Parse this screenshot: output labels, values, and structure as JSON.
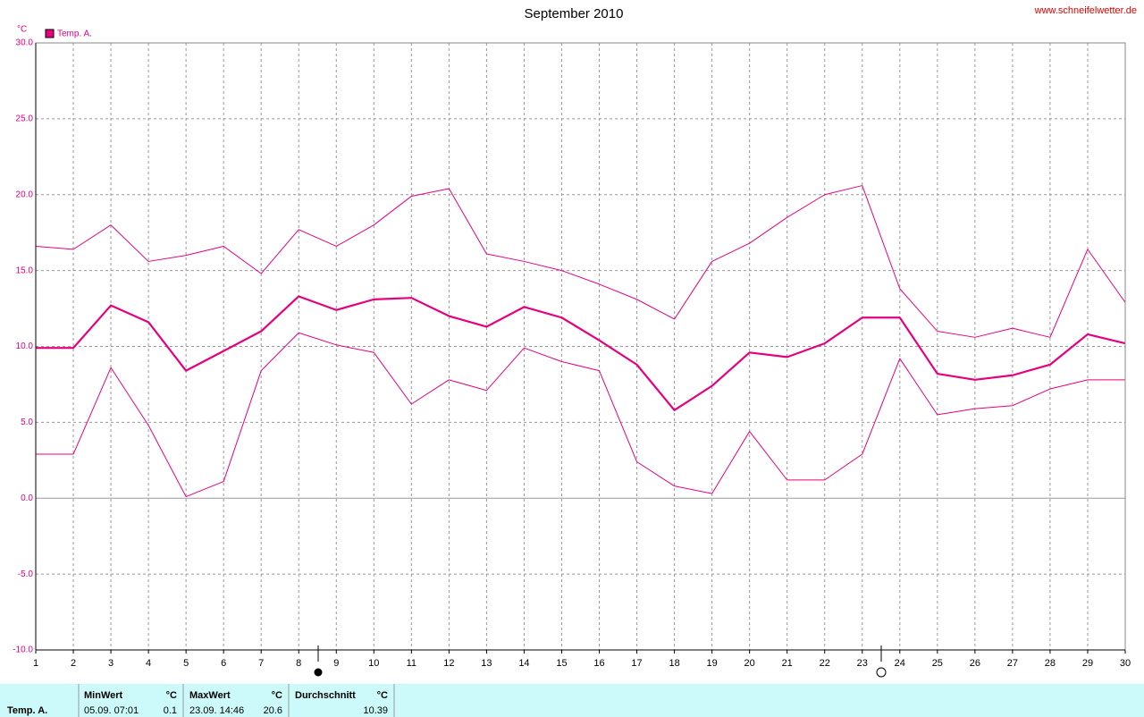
{
  "chart_data": {
    "type": "line",
    "title": "September 2010",
    "source": "www.schneifelwetter.de",
    "y_label": "°C",
    "legend": "Temp. A.",
    "x": [
      1,
      2,
      3,
      4,
      5,
      6,
      7,
      8,
      9,
      10,
      11,
      12,
      13,
      14,
      15,
      16,
      17,
      18,
      19,
      20,
      21,
      22,
      23,
      24,
      25,
      26,
      27,
      28,
      29,
      30
    ],
    "xlim": [
      1,
      30
    ],
    "xticks": [
      1,
      2,
      3,
      4,
      5,
      6,
      7,
      8,
      9,
      10,
      11,
      12,
      13,
      14,
      15,
      16,
      17,
      18,
      19,
      20,
      21,
      22,
      23,
      24,
      25,
      26,
      27,
      28,
      29,
      30
    ],
    "ylim": [
      -10,
      30
    ],
    "yticks": [
      {
        "value": -10,
        "label": "-10.0"
      },
      {
        "value": -5,
        "label": "-5.0"
      },
      {
        "value": 0,
        "label": "0.0"
      },
      {
        "value": 5,
        "label": "5.0"
      },
      {
        "value": 10,
        "label": "10.0"
      },
      {
        "value": 15,
        "label": "15.0"
      },
      {
        "value": 20,
        "label": "20.0"
      },
      {
        "value": 25,
        "label": "25.0"
      },
      {
        "value": 30,
        "label": "30.0"
      }
    ],
    "grid": true,
    "series": [
      {
        "color": "#e6007e",
        "bold": false,
        "values": [
          16.6,
          16.4,
          18.0,
          15.6,
          16.0,
          16.6,
          14.8,
          17.7,
          16.6,
          18.0,
          19.9,
          20.4,
          16.1,
          15.6,
          15.0,
          14.1,
          13.1,
          11.8,
          15.6,
          16.8,
          18.5,
          20.0,
          20.6,
          13.8,
          11.0,
          10.6,
          11.2,
          10.6,
          16.4,
          12.9
        ]
      },
      {
        "color": "#e6007e",
        "bold": true,
        "values": [
          9.9,
          9.9,
          12.7,
          11.6,
          8.4,
          9.7,
          11.0,
          13.3,
          12.4,
          13.1,
          13.2,
          12.0,
          11.3,
          12.6,
          11.9,
          10.4,
          8.8,
          5.8,
          7.4,
          9.6,
          9.3,
          10.2,
          11.9,
          11.9,
          8.2,
          7.8,
          8.1,
          8.8,
          10.8,
          10.2
        ]
      },
      {
        "color": "#e6007e",
        "bold": false,
        "values": [
          2.9,
          2.9,
          8.6,
          4.8,
          0.1,
          1.1,
          8.4,
          10.9,
          10.1,
          9.6,
          6.2,
          7.8,
          7.1,
          9.9,
          9.0,
          8.4,
          2.4,
          0.8,
          0.3,
          4.4,
          1.2,
          1.2,
          2.9,
          9.2,
          5.5,
          5.9,
          6.1,
          7.2,
          7.8,
          7.8
        ]
      }
    ]
  },
  "stats": {
    "label": "Temp. A.",
    "min": {
      "header": "MinWert",
      "unit": "°C",
      "when": "05.09.  07:01",
      "value": "0.1"
    },
    "max": {
      "header": "MaxWert",
      "unit": "°C",
      "when": "23.09.  14:46",
      "value": "20.6"
    },
    "avg": {
      "header": "Durchschnitt",
      "unit": "°C",
      "value": "10.39"
    }
  }
}
